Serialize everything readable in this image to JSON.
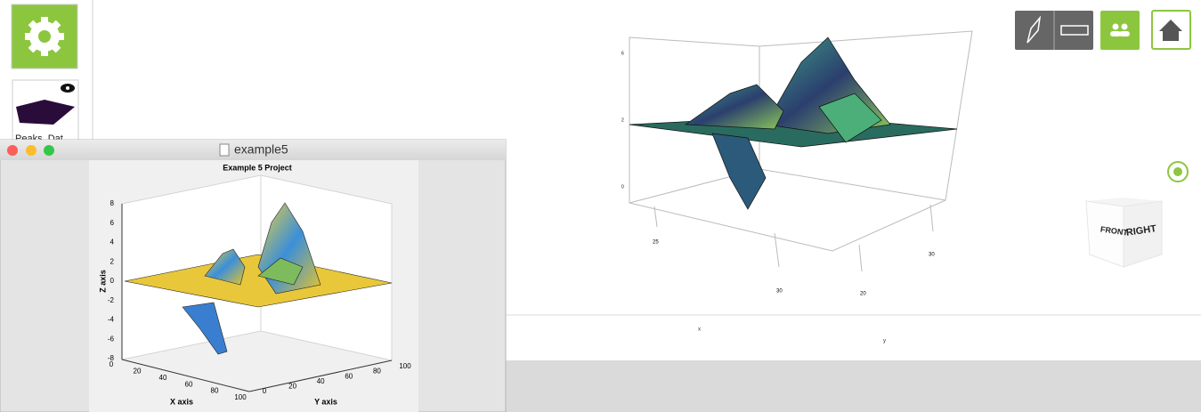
{
  "sidebar": {
    "dataset_label": "Peaks_Dat"
  },
  "window": {
    "title": "example5",
    "figure": {
      "title": "Example 5 Project",
      "z_axis": {
        "label": "Z axis",
        "ticks": [
          8,
          6,
          4,
          2,
          0,
          -2,
          -4,
          -6,
          -8
        ]
      },
      "x_axis": {
        "label": "X axis",
        "ticks": [
          0,
          20,
          40,
          60,
          80,
          100
        ]
      },
      "y_axis": {
        "label": "Y axis",
        "ticks": [
          0,
          20,
          40,
          60,
          80,
          100
        ]
      }
    }
  },
  "viewer": {
    "z_ticks": [
      6,
      2,
      0
    ],
    "x_ticks": [
      25,
      30
    ],
    "y_ticks": [
      20,
      30
    ],
    "x_label": "x",
    "y_label": "y",
    "cube": {
      "front": "FRONT",
      "right": "RIGHT"
    }
  }
}
